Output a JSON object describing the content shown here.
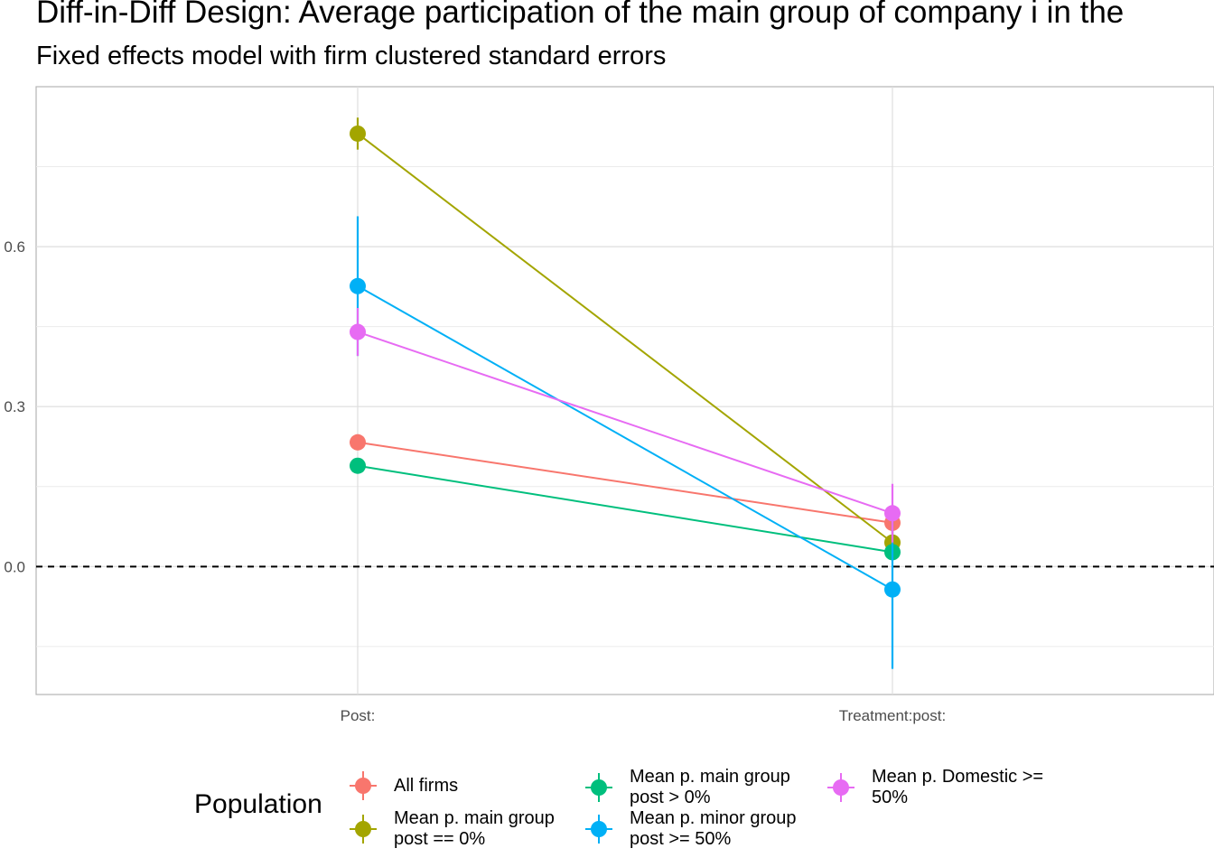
{
  "title": "Diff-in-Diff Design: Average participation of the main group of company i in the",
  "subtitle": "Fixed effects model with firm clustered standard errors",
  "chart_data": {
    "type": "scatter",
    "categories": [
      "Post:",
      "Treatment:post:"
    ],
    "ylim": [
      -0.24,
      0.9
    ],
    "yticks": [
      0.0,
      0.3,
      0.6
    ],
    "ytick_labels": [
      "0.0",
      "0.3",
      "0.6"
    ],
    "reference_line": 0.0,
    "grid": true,
    "legend_title": "Population",
    "legend_position": "bottom",
    "series": [
      {
        "name": "All firms",
        "color": "#F8766D",
        "values": [
          0.233,
          0.082
        ],
        "lower": [
          0.218,
          0.062
        ],
        "upper": [
          0.248,
          0.102
        ]
      },
      {
        "name": "Mean p. main group post == 0%",
        "color": "#A3A500",
        "values": [
          0.812,
          0.045
        ],
        "lower": [
          0.782,
          0.022
        ],
        "upper": [
          0.842,
          0.068
        ]
      },
      {
        "name": "Mean p. main group post > 0%",
        "color": "#00BF7D",
        "values": [
          0.189,
          0.027
        ],
        "lower": [
          0.175,
          0.012
        ],
        "upper": [
          0.203,
          0.042
        ]
      },
      {
        "name": "Mean p. minor group post >= 50%",
        "color": "#00B0F6",
        "values": [
          0.526,
          -0.043
        ],
        "lower": [
          0.395,
          -0.192
        ],
        "upper": [
          0.657,
          0.106
        ]
      },
      {
        "name": "Mean p. Domestic >= 50%",
        "color": "#E76BF3",
        "values": [
          0.44,
          0.1
        ],
        "lower": [
          0.395,
          0.045
        ],
        "upper": [
          0.485,
          0.155
        ]
      }
    ]
  },
  "legend": {
    "title": "Population",
    "items": [
      {
        "label": "All firms",
        "color": "#F8766D"
      },
      {
        "label": "Mean p. main group post == 0%",
        "color": "#A3A500"
      },
      {
        "label": "Mean p. main group post > 0%",
        "color": "#00BF7D"
      },
      {
        "label": "Mean p. minor group post >= 50%",
        "color": "#00B0F6"
      },
      {
        "label": "Mean p. Domestic >= 50%",
        "color": "#E76BF3"
      }
    ]
  }
}
